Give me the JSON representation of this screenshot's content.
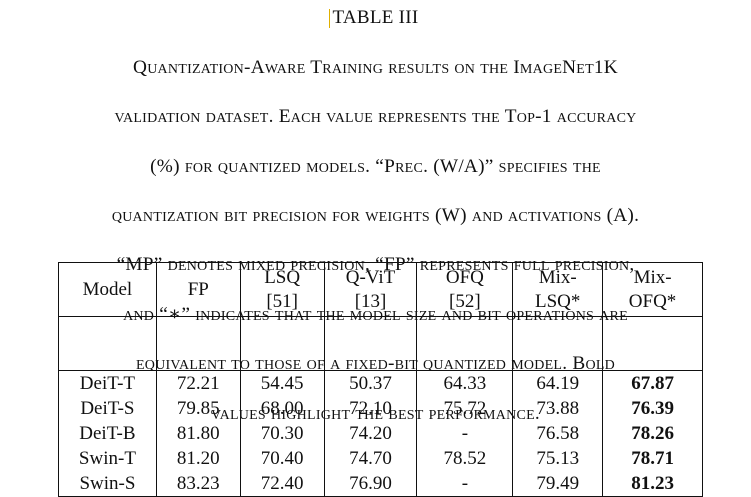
{
  "table_label": "TABLE III",
  "caption_lines": [
    "Quantization-Aware Training results on the ImageNet1K",
    "validation dataset. Each value represents the Top-1 accuracy",
    "(%) for quantized models. “Prec. (W/A)” specifies the",
    "quantization bit precision for weights (W) and activations (A).",
    "“MP” denotes mixed precision, “FP” represents full precision,",
    "and “∗” indicates that the model size and bit operations are",
    "equivalent to those of a fixed-bit quantized model. Bold",
    "values highlight the best performance."
  ],
  "table": {
    "headers": [
      {
        "line1": "Model",
        "line2": ""
      },
      {
        "line1": "FP",
        "line2": ""
      },
      {
        "line1": "LSQ",
        "line2": "[51]"
      },
      {
        "line1": "Q-ViT",
        "line2": "[13]"
      },
      {
        "line1": "OFQ",
        "line2": "[52]"
      },
      {
        "line1": "Mix-",
        "line2": "LSQ*"
      },
      {
        "line1": "Mix-",
        "line2": "OFQ*"
      }
    ],
    "rows": [
      {
        "model": "DeiT-T",
        "fp": "72.21",
        "lsq": "54.45",
        "qvit": "50.37",
        "ofq": "64.33",
        "mix_lsq": "64.19",
        "mix_ofq": "67.87"
      },
      {
        "model": "DeiT-S",
        "fp": "79.85",
        "lsq": "68.00",
        "qvit": "72.10",
        "ofq": "75.72",
        "mix_lsq": "73.88",
        "mix_ofq": "76.39"
      },
      {
        "model": "DeiT-B",
        "fp": "81.80",
        "lsq": "70.30",
        "qvit": "74.20",
        "ofq": "-",
        "mix_lsq": "76.58",
        "mix_ofq": "78.26"
      },
      {
        "model": "Swin-T",
        "fp": "81.20",
        "lsq": "70.40",
        "qvit": "74.70",
        "ofq": "78.52",
        "mix_lsq": "75.13",
        "mix_ofq": "78.71"
      },
      {
        "model": "Swin-S",
        "fp": "83.23",
        "lsq": "72.40",
        "qvit": "76.90",
        "ofq": "-",
        "mix_lsq": "79.49",
        "mix_ofq": "81.23"
      }
    ],
    "bold_column": "mix_ofq"
  }
}
